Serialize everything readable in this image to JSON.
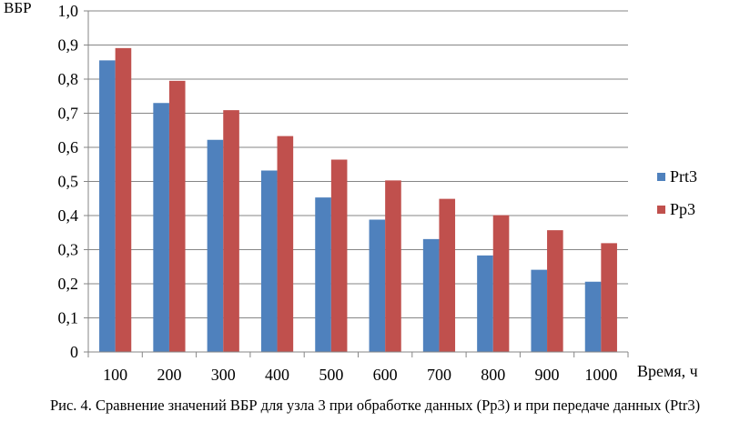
{
  "chart_data": {
    "type": "bar",
    "ylabel": "ВБР",
    "xlabel": "Время, ч",
    "categories": [
      "100",
      "200",
      "300",
      "400",
      "500",
      "600",
      "700",
      "800",
      "900",
      "1000"
    ],
    "series": [
      {
        "name": "Prt3",
        "color": "#4F81BD",
        "values": [
          0.855,
          0.73,
          0.622,
          0.532,
          0.453,
          0.388,
          0.331,
          0.283,
          0.241,
          0.206
        ]
      },
      {
        "name": "Pp3",
        "color": "#C0504D",
        "values": [
          0.891,
          0.795,
          0.709,
          0.633,
          0.564,
          0.503,
          0.449,
          0.401,
          0.357,
          0.319
        ]
      }
    ],
    "ylim": [
      0,
      1.0
    ],
    "yticks": [
      "0",
      "0,1",
      "0,2",
      "0,3",
      "0,4",
      "0,5",
      "0,6",
      "0,7",
      "0,8",
      "0,9",
      "1,0"
    ],
    "grid": true,
    "legend_position": "right"
  },
  "caption": "Рис. 4. Сравнение значений ВБР для узла 3 при обработке данных (Pp3) и при передаче данных (Ptr3)"
}
